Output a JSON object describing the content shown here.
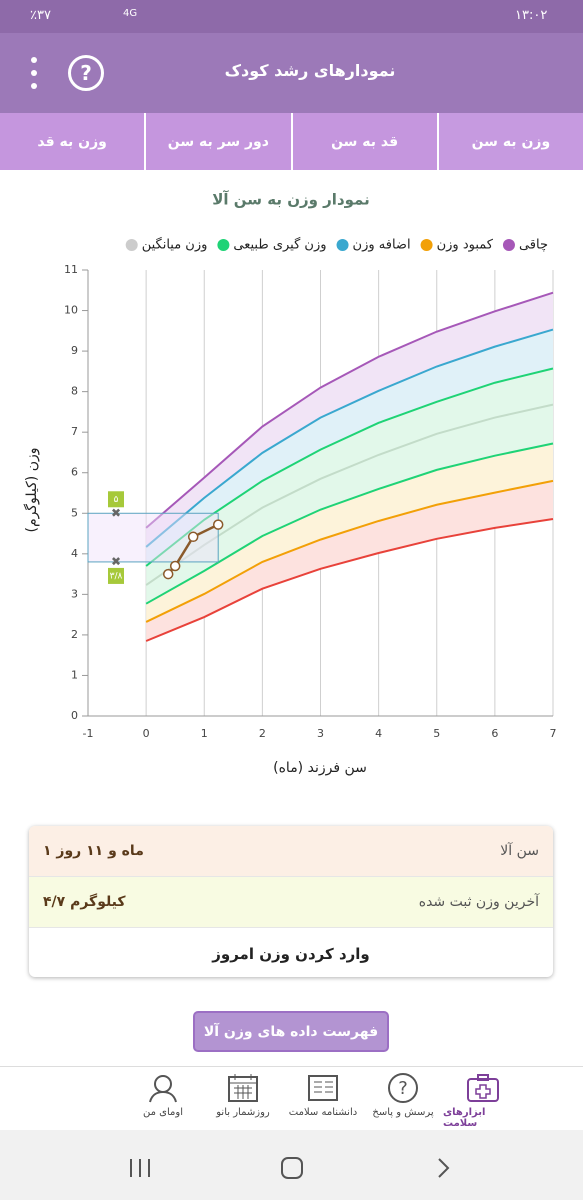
{
  "status_bar": {
    "time": "۱۳:۰۲",
    "battery": "٪۳۷",
    "network": "4G"
  },
  "header": {
    "title": "نمودارهای رشد کودک"
  },
  "tabs": [
    "وزن به سن",
    "قد به سن",
    "دور سر به سن",
    "وزن به قد"
  ],
  "chart_data": {
    "type": "line",
    "title": "نمودار وزن به سن آلا",
    "xlabel": "سن فرزند (ماه)",
    "ylabel": "وزن (کیلوگرم)",
    "legend": [
      {
        "name": "چاقی",
        "color": "#a658b8"
      },
      {
        "name": "کمبود وزن",
        "color": "#f2a007"
      },
      {
        "name": "اضافه وزن",
        "color": "#3aa8cf"
      },
      {
        "name": "وزن گیری طبیعی",
        "color": "#1fd376"
      },
      {
        "name": "وزن میانگین",
        "color": "#cccccc"
      }
    ],
    "x": [
      0,
      1,
      2,
      3,
      4,
      5,
      6,
      7
    ],
    "curves": [
      {
        "color": "#a658b8",
        "band": "#f1e4f6",
        "values": [
          4.64,
          5.88,
          7.14,
          8.1,
          8.86,
          9.48,
          9.98,
          10.44
        ]
      },
      {
        "color": "#3aa8cf",
        "band": "#e0f1f8",
        "values": [
          4.17,
          5.38,
          6.49,
          7.36,
          8.02,
          8.62,
          9.11,
          9.53
        ]
      },
      {
        "color": "#1fd376",
        "band": "#e2f8ea",
        "values": [
          3.7,
          4.84,
          5.8,
          6.57,
          7.23,
          7.75,
          8.22,
          8.57
        ]
      },
      {
        "color": "#c3dcc9",
        "band": "#e2f8ea",
        "values": [
          3.23,
          4.22,
          5.14,
          5.85,
          6.44,
          6.96,
          7.36,
          7.68
        ]
      },
      {
        "color": "#1fd376",
        "band": "#fdf3da",
        "values": [
          2.77,
          3.58,
          4.44,
          5.09,
          5.6,
          6.07,
          6.42,
          6.72
        ]
      },
      {
        "color": "#f2a007",
        "band": "#fde2df",
        "values": [
          2.32,
          3.01,
          3.8,
          4.35,
          4.81,
          5.21,
          5.51,
          5.8
        ]
      },
      {
        "color": "#e8423a",
        "values": [
          1.85,
          2.44,
          3.14,
          3.63,
          4.02,
          4.37,
          4.64,
          4.86
        ]
      }
    ],
    "child": {
      "color": "#8b5a2b",
      "x": [
        0.38,
        0.5,
        0.81,
        1.24
      ],
      "values": [
        3.5,
        3.7,
        4.42,
        4.72
      ]
    },
    "range": {
      "color": "#a6c93a",
      "low": {
        "value": 3.8,
        "label": "۳/۸"
      },
      "high": {
        "value": 5,
        "label": "۵"
      }
    },
    "xlim": [
      -1,
      7
    ],
    "ylim": [
      0,
      11
    ],
    "xticks": [
      -1,
      0,
      1,
      2,
      3,
      4,
      5,
      6,
      7
    ],
    "yticks": [
      0,
      1,
      2,
      3,
      4,
      5,
      6,
      7,
      8,
      9,
      10,
      11
    ],
    "grid": true
  },
  "info": {
    "rows": [
      {
        "label": "سن آلا",
        "value": "۱ ماه و ۱۱ روز"
      },
      {
        "label": "آخرین وزن ثبت شده",
        "value": "۴/۷ کیلوگرم"
      }
    ],
    "action": "وارد کردن وزن امروز"
  },
  "button": "فهرست داده های وزن آلا",
  "nav": [
    "ابزارهای سلامت",
    "پرسش و پاسخ",
    "دانشنامه سلامت",
    "روزشمار بانو",
    "اومای من"
  ]
}
